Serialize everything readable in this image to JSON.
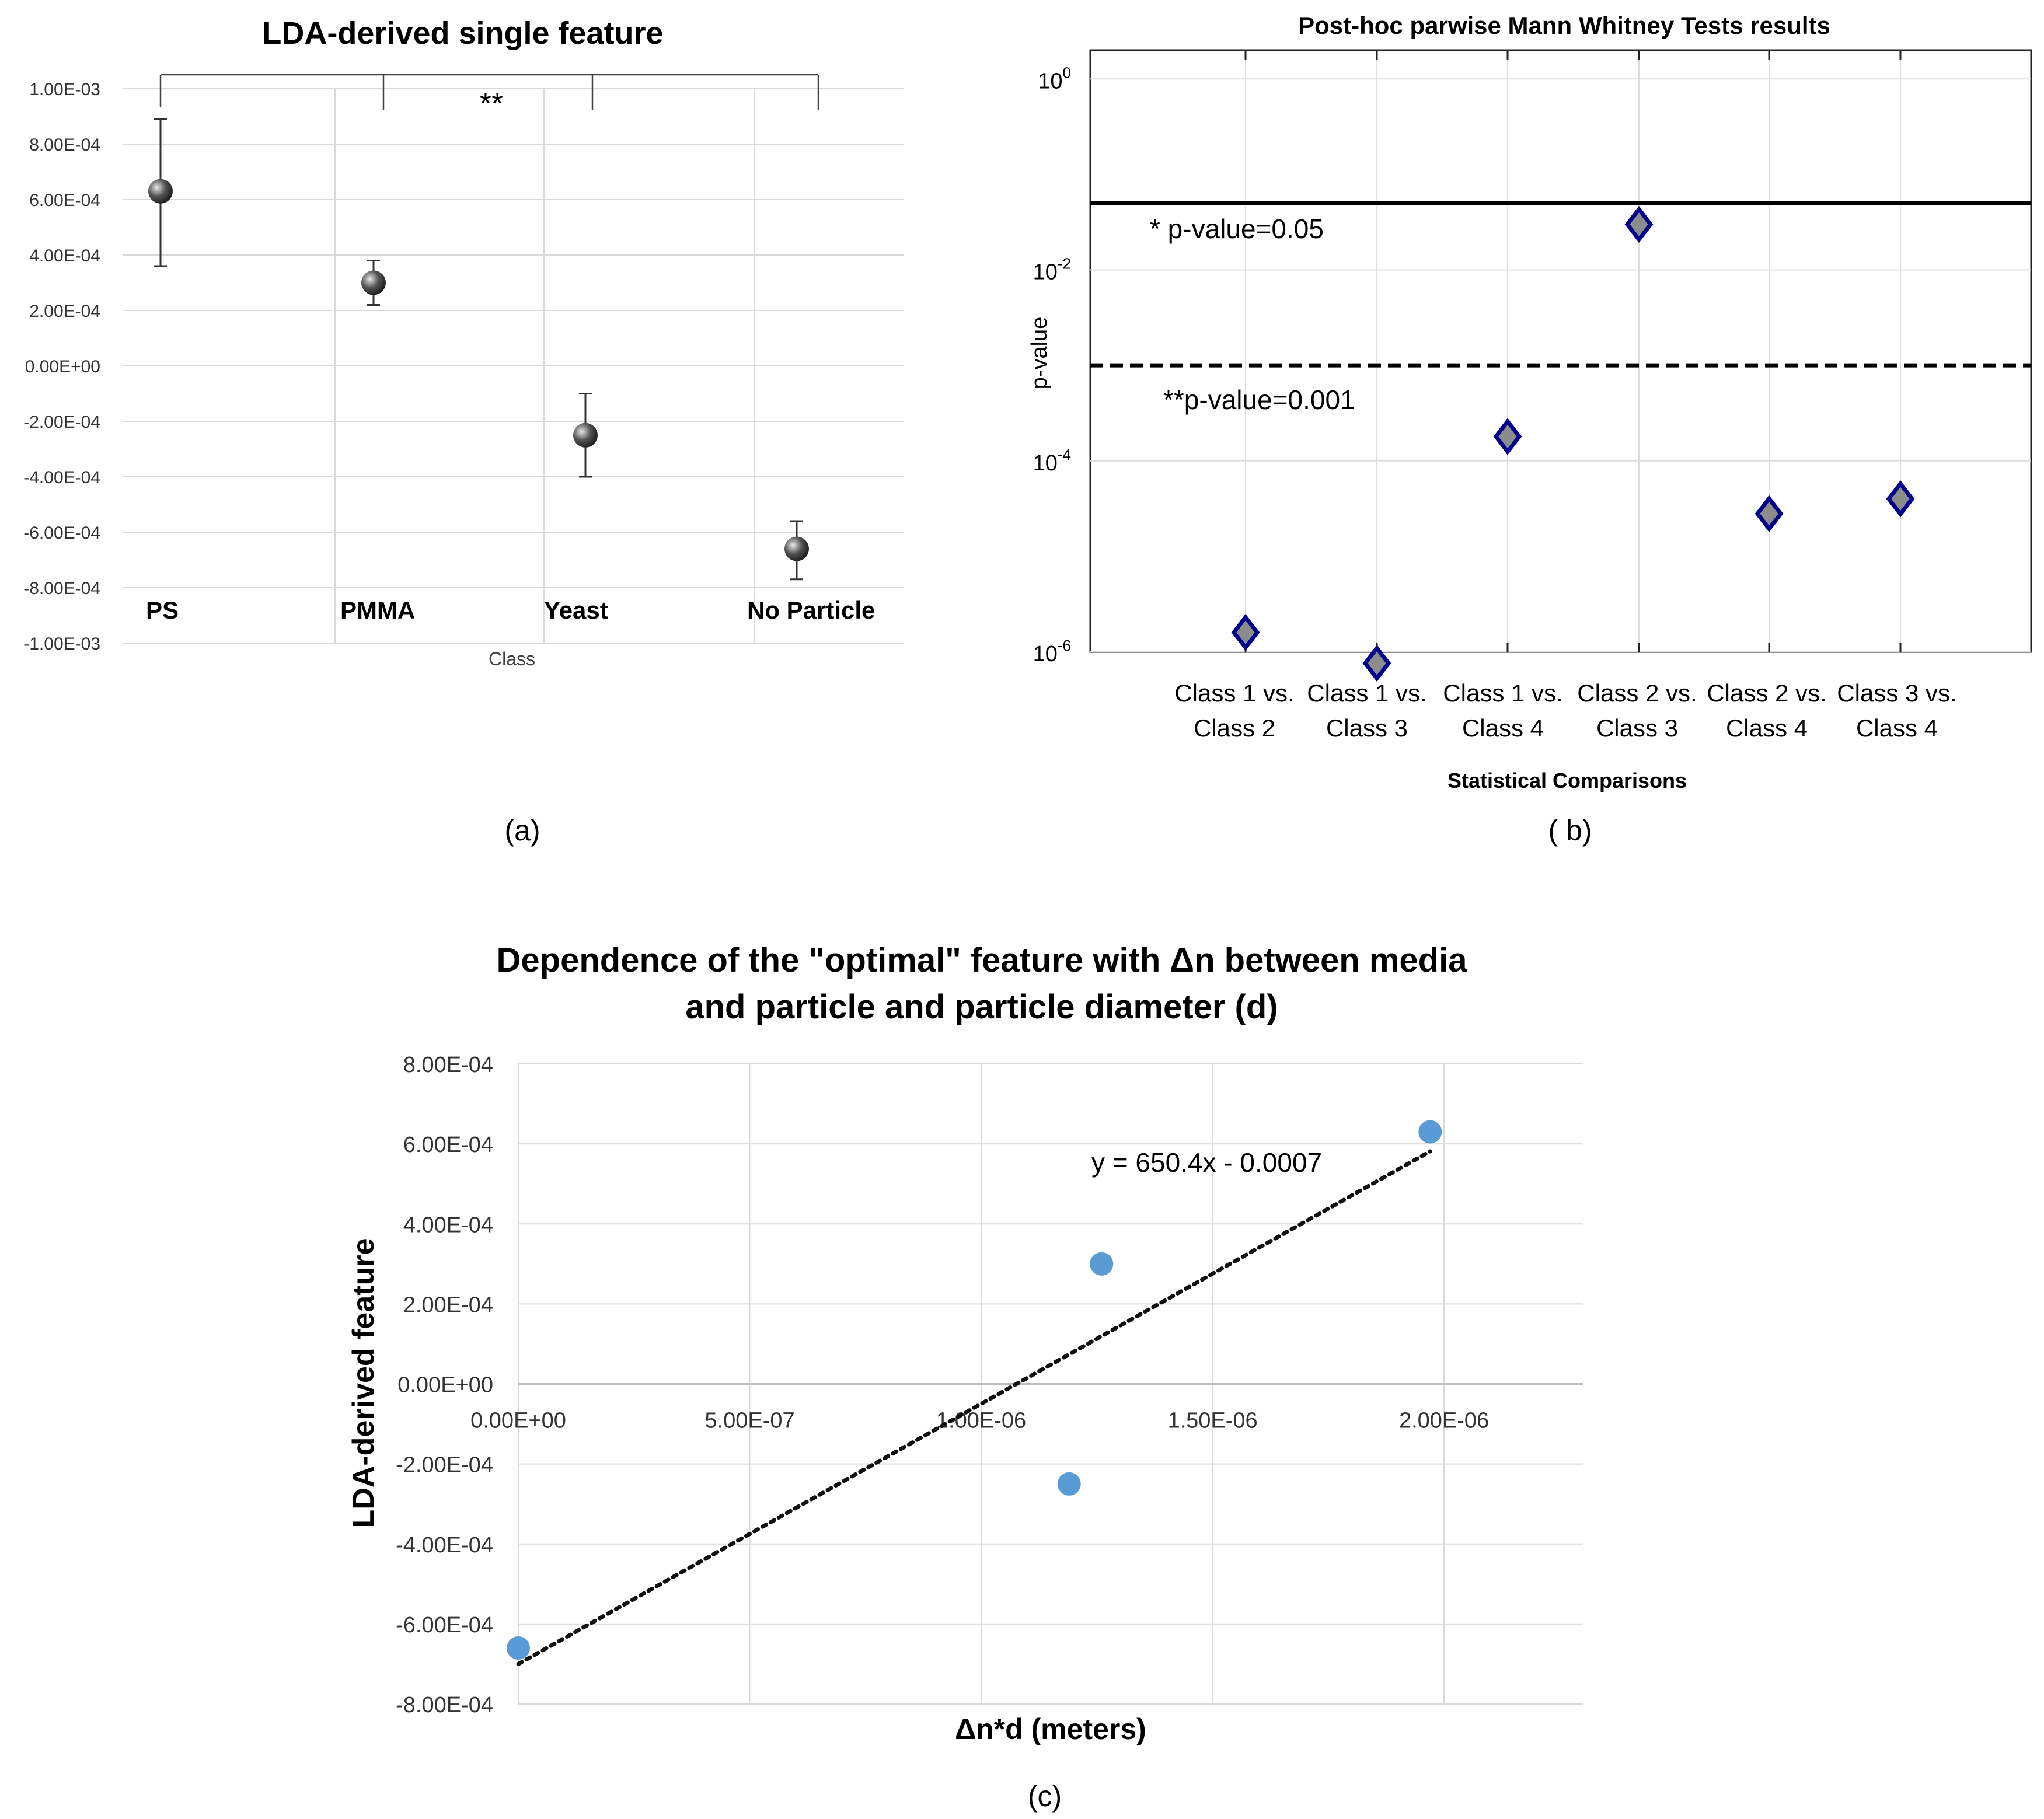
{
  "chart_data": [
    {
      "type": "scatter",
      "panel_label": "(a)",
      "title": "LDA-derived single feature",
      "xlabel": "Class",
      "ylabel": "",
      "categories": [
        "PS",
        "PMMA",
        "Yeast",
        "No Particle"
      ],
      "values": [
        0.00063,
        0.0003,
        -0.00025,
        -0.00066
      ],
      "error_low": [
        0.00036,
        0.00022,
        -0.0004,
        -0.00077
      ],
      "error_high": [
        0.00089,
        0.00038,
        -0.0001,
        -0.00056
      ],
      "ylim": [
        -0.001,
        0.001
      ],
      "yticks": [
        "1.00E-03",
        "8.00E-04",
        "6.00E-04",
        "4.00E-04",
        "2.00E-04",
        "0.00E+00",
        "-2.00E-04",
        "-4.00E-04",
        "-6.00E-04",
        "-8.00E-04",
        "-1.00E-03"
      ],
      "significance_label": "**",
      "grid": true,
      "colors": {
        "marker": "#555555",
        "grid": "#d9d9d9"
      }
    },
    {
      "type": "scatter",
      "panel_label": "( b)",
      "title": "Post-hoc parwise Mann Whitney Tests results",
      "xlabel": "Statistical Comparisons",
      "ylabel": "p-value",
      "yscale": "log",
      "ylim": [
        1e-06,
        2
      ],
      "categories": [
        [
          "Class 1 vs.",
          "Class 2"
        ],
        [
          "Class 1 vs.",
          "Class 3"
        ],
        [
          "Class 1 vs.",
          "Class 4"
        ],
        [
          "Class 2 vs.",
          "Class 3"
        ],
        [
          "Class 2 vs.",
          "Class 4"
        ],
        [
          "Class 3 vs.",
          "Class 4"
        ]
      ],
      "values": [
        1.6e-06,
        7.6e-07,
        0.00018,
        0.03,
        2.8e-05,
        4e-05
      ],
      "yticks": [
        {
          "base": "10",
          "exp": "0",
          "value": 1
        },
        {
          "base": "10",
          "exp": "-2",
          "value": 0.01
        },
        {
          "base": "10",
          "exp": "-4",
          "value": 0.0001
        },
        {
          "base": "10",
          "exp": "-6",
          "value": 1e-06
        }
      ],
      "threshold_lines": [
        {
          "value": 0.05,
          "label": "* p-value=0.05",
          "style": "solid"
        },
        {
          "value": 0.001,
          "label": "**p-value=0.001",
          "style": "dashed"
        }
      ],
      "grid": true,
      "colors": {
        "marker_fill": "#8c8c8c",
        "marker_edge": "#00008b"
      }
    },
    {
      "type": "scatter",
      "panel_label": "(c)",
      "title": [
        "Dependence of the \"optimal\" feature with Δn between media",
        "and particle and particle diameter (d)"
      ],
      "xlabel": "Δn*d (meters)",
      "ylabel": "LDA-derived feature",
      "x": [
        0,
        1.19e-06,
        1.26e-06,
        1.97e-06
      ],
      "y": [
        -0.00066,
        -0.00025,
        0.0003,
        0.00063
      ],
      "xlim": [
        0,
        2.3e-06
      ],
      "ylim": [
        -0.0008,
        0.0008
      ],
      "xticks": [
        "0.00E+00",
        "5.00E-07",
        "1.00E-06",
        "1.50E-06",
        "2.00E-06"
      ],
      "yticks": [
        "8.00E-04",
        "6.00E-04",
        "4.00E-04",
        "2.00E-04",
        "0.00E+00",
        "-2.00E-04",
        "-4.00E-04",
        "-6.00E-04",
        "-8.00E-04"
      ],
      "trendline": {
        "slope": 650.4,
        "intercept": -0.0007,
        "label": "y = 650.4x - 0.0007",
        "style": "dotted"
      },
      "grid": true,
      "colors": {
        "marker": "#5b9bd5",
        "grid": "#d9d9d9"
      }
    }
  ]
}
